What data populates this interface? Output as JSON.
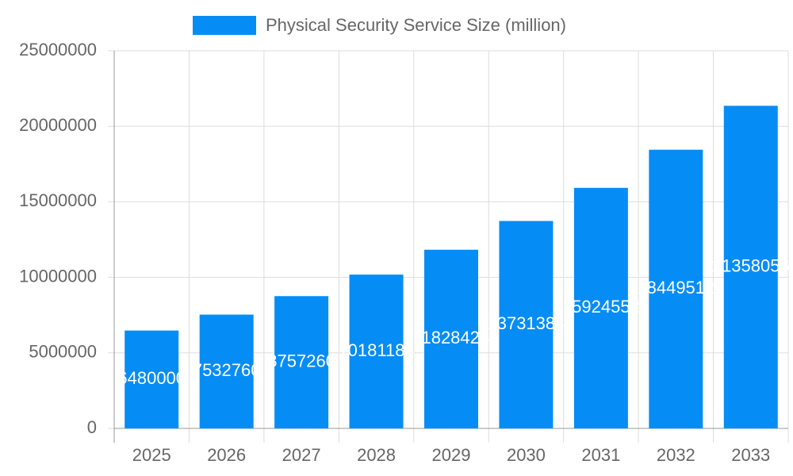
{
  "chart_data": {
    "type": "bar",
    "legend_label": "Physical Security Service Size (million)",
    "categories": [
      "2025",
      "2026",
      "2027",
      "2028",
      "2029",
      "2030",
      "2031",
      "2032",
      "2033"
    ],
    "values": [
      6480000,
      7532760,
      8757260,
      10181184,
      11828424,
      13731384,
      15924552,
      18449512,
      21358056
    ],
    "color": "#068df5",
    "ylim": [
      0,
      25000000
    ],
    "yticks": [
      0,
      5000000,
      10000000,
      15000000,
      20000000,
      25000000
    ],
    "grid": true
  }
}
